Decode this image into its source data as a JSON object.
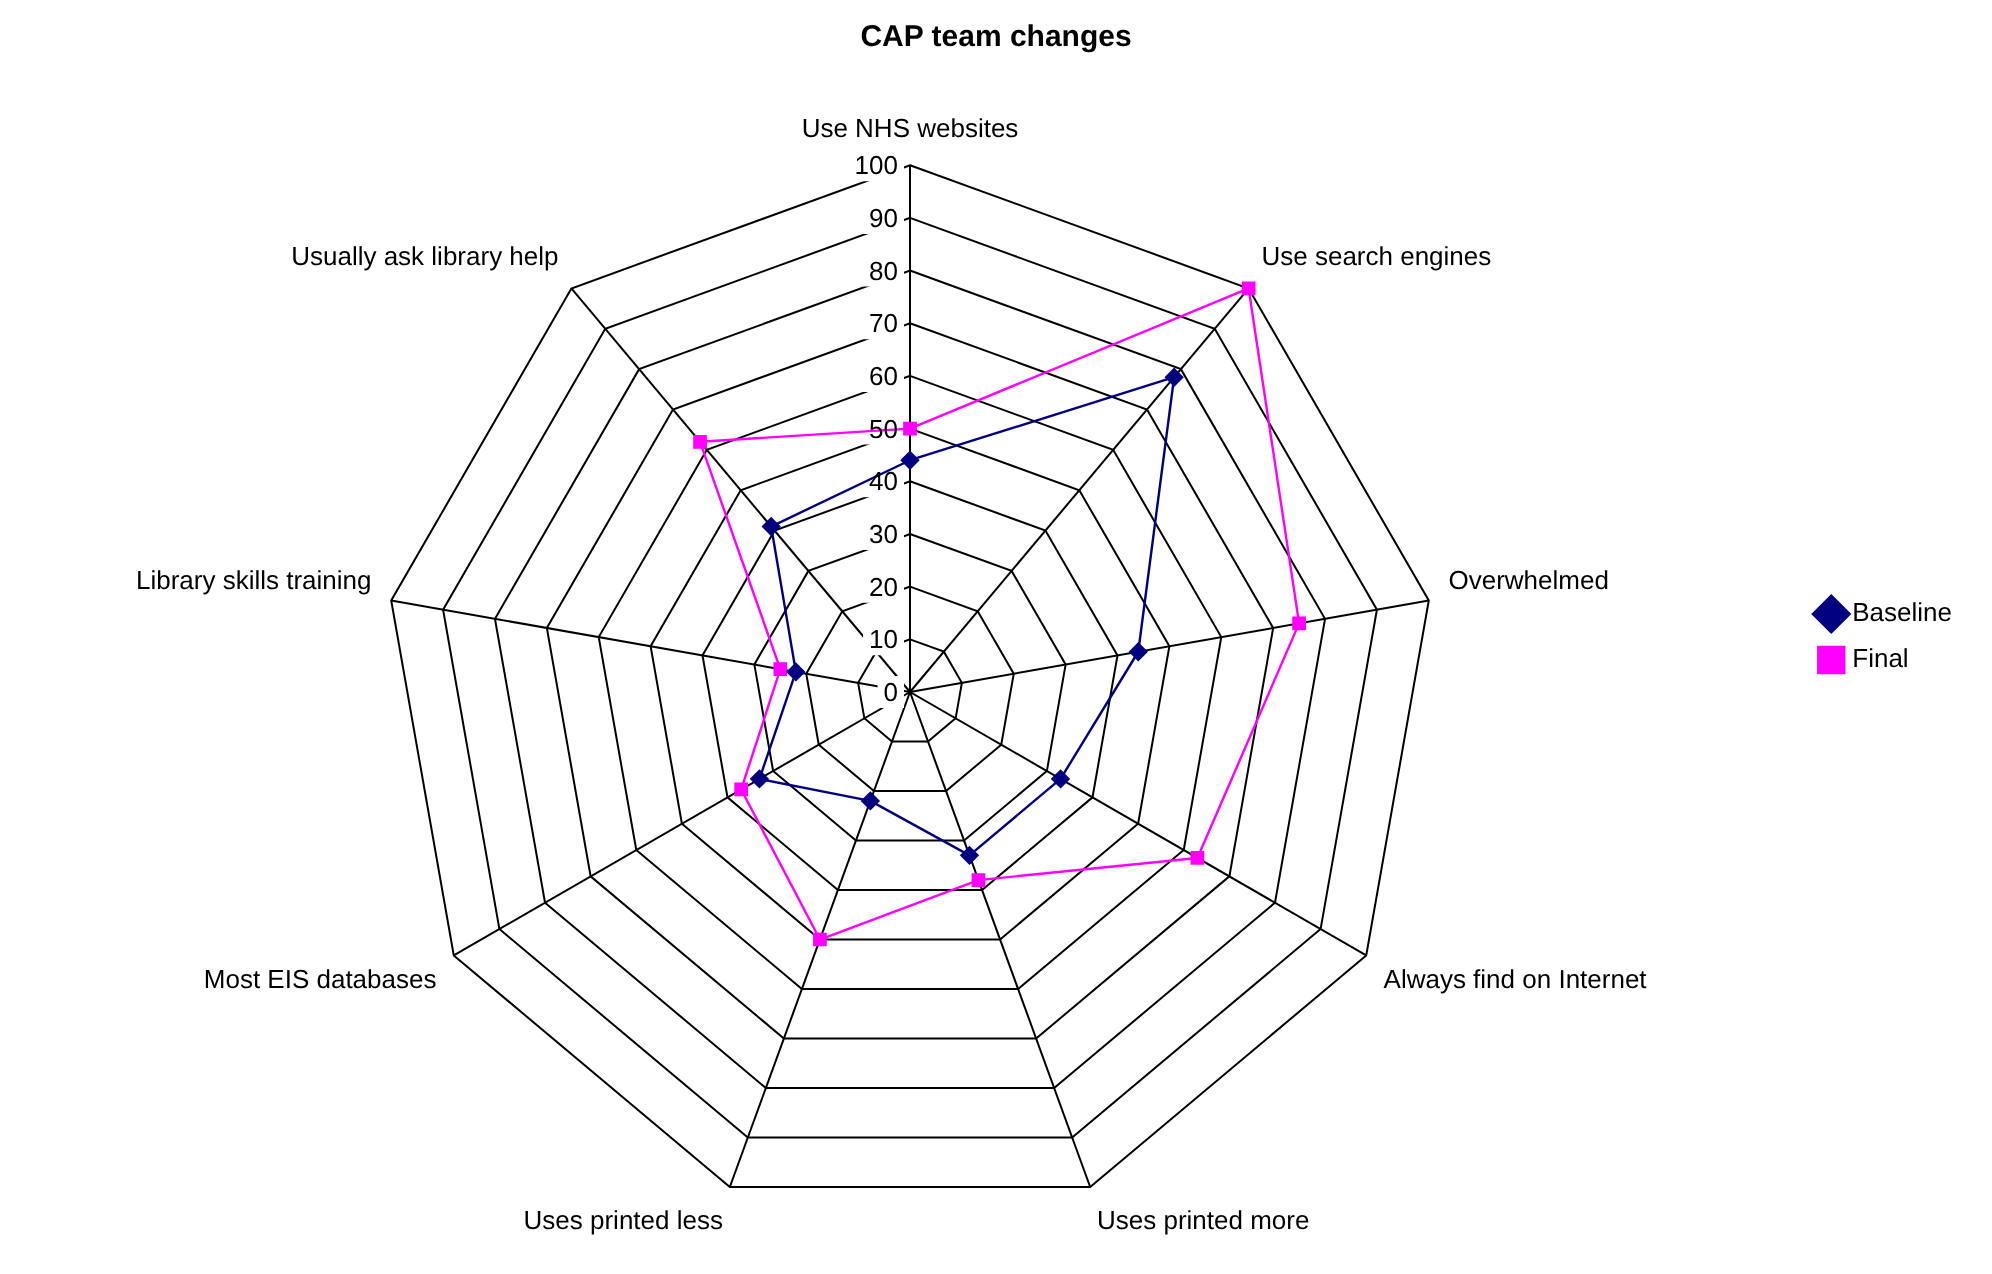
{
  "chart_data": {
    "type": "radar",
    "title": "CAP team changes",
    "categories": [
      "Use NHS websites",
      "Use search engines",
      "Overwhelmed",
      "Always find on Internet",
      "Uses printed more",
      "Uses printed less",
      "Most EIS databases",
      "Library skills training",
      "Usually ask library help"
    ],
    "series": [
      {
        "name": "Baseline",
        "color": "#000080",
        "marker": "diamond",
        "values": [
          44,
          78,
          44,
          33,
          33,
          22,
          33,
          22,
          41
        ]
      },
      {
        "name": "Final",
        "color": "#ff00ff",
        "marker": "square",
        "values": [
          50,
          100,
          75,
          63,
          38,
          50,
          37,
          25,
          62
        ]
      }
    ],
    "ylim": [
      0,
      100
    ],
    "yticks": [
      0,
      10,
      20,
      30,
      40,
      50,
      60,
      70,
      80,
      90,
      100
    ],
    "grid": true,
    "legend": "right"
  }
}
